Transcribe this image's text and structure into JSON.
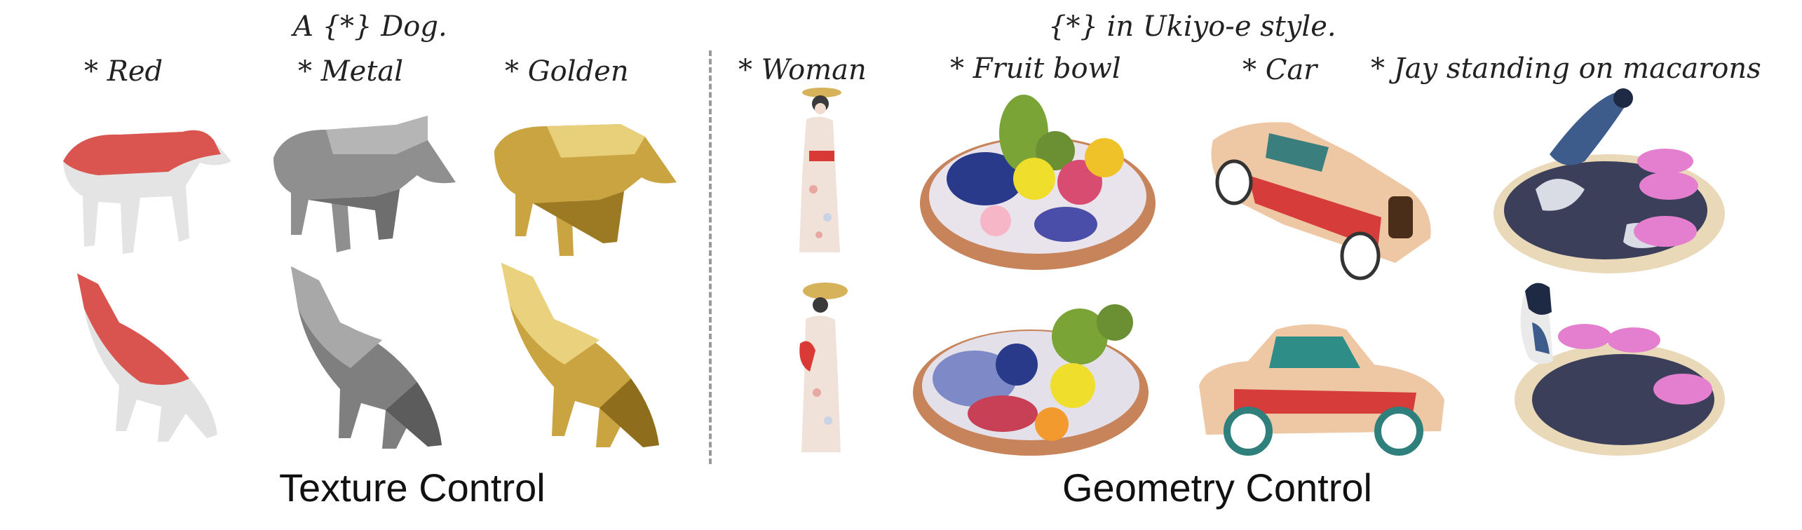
{
  "texture": {
    "prompt": "A {*} Dog.",
    "labels": [
      "* Red",
      "* Metal",
      "* Golden"
    ],
    "caption": "Texture Control",
    "colors": {
      "red": "#d9453f",
      "metal": "#8a8a8a",
      "golden": "#c9a440"
    }
  },
  "geometry": {
    "prompt": "{*} in  Ukiyo-e style.",
    "labels": [
      "* Woman",
      "* Fruit bowl",
      "* Car",
      "* Jay standing on macarons"
    ],
    "caption": "Geometry Control"
  },
  "icons": [
    "dog-red-icon",
    "dog-metal-icon",
    "dog-golden-icon",
    "woman-icon",
    "fruit-bowl-icon",
    "car-icon",
    "jay-macarons-icon"
  ]
}
